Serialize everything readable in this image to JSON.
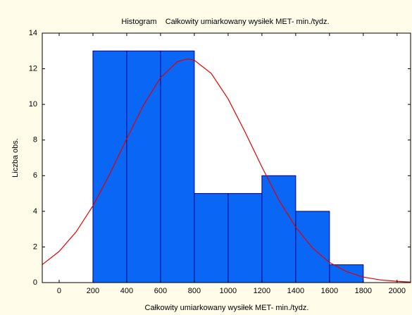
{
  "chart_data": {
    "type": "histogram",
    "title": "Histogram    Całkowity umiarkowany wysiłek MET- min./tydz.",
    "xlabel": "Całkowity umiarkowany wysiłek MET- min./tydz.",
    "ylabel": "Liczba obs.",
    "bins": [
      0,
      200,
      400,
      600,
      800,
      1000,
      1200,
      1400,
      1600,
      1800
    ],
    "values": [
      0,
      13,
      13,
      13,
      5,
      5,
      6,
      4,
      1
    ],
    "color": "#0a66f5",
    "edgecolor": "#00008b",
    "xlim": [
      -100,
      2080
    ],
    "ylim": [
      0,
      14
    ],
    "xticks": [
      0,
      200,
      400,
      600,
      800,
      1000,
      1200,
      1400,
      1600,
      1800,
      2000
    ],
    "yticks": [
      0,
      2,
      4,
      6,
      8,
      10,
      12,
      14
    ],
    "curve": {
      "type": "line",
      "color": "#e00000",
      "x": [
        -100,
        0,
        100,
        200,
        300,
        400,
        500,
        600,
        700,
        760,
        800,
        900,
        1000,
        1100,
        1200,
        1300,
        1400,
        1500,
        1600,
        1700,
        1800,
        1900,
        2000,
        2080
      ],
      "values": [
        1.01,
        1.75,
        2.84,
        4.31,
        6.1,
        8.07,
        9.97,
        11.5,
        12.4,
        12.55,
        12.48,
        11.74,
        10.31,
        8.46,
        6.49,
        4.64,
        3.11,
        1.94,
        1.13,
        0.62,
        0.31,
        0.15,
        0.07,
        0.03
      ]
    }
  }
}
